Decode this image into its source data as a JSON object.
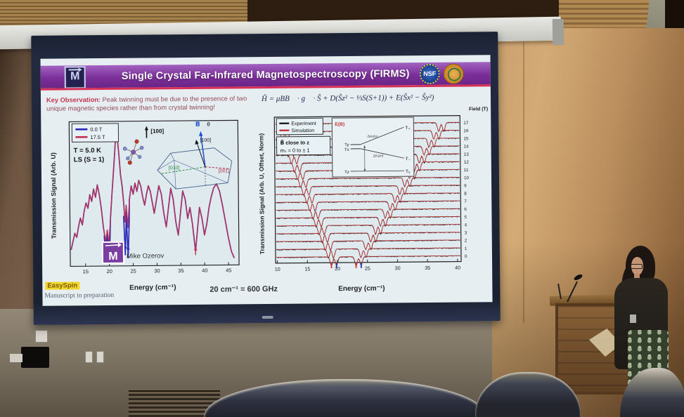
{
  "slide": {
    "title": "Single Crystal Far-Infrared Magnetospectroscopy (FIRMS)",
    "key_observation_label": "Key Observation:",
    "key_observation_text": " Peak twinning must be due to the presence of two unique magnetic species rather than from crystal twinning!",
    "equation": "Ĥ = μBB⃗ · g⃗ · Ŝ + D(Ŝz² − ⅓S(S+1)) + E(Ŝx² − Ŝy²)",
    "conversion": "20 cm⁻¹ = 600 GHz",
    "easyspin": "EasySpin",
    "manuscript": "Manuscript in preparation",
    "logos": {
      "maglab_m": "M",
      "nsf": "NSF"
    }
  },
  "chart_data": [
    {
      "type": "line",
      "title": "",
      "xlabel": "Energy (cm⁻¹)",
      "ylabel": "Transmission Signal (Arb. U)",
      "xlim": [
        11.8,
        47.2
      ],
      "xticks": [
        15,
        20,
        25,
        30,
        35,
        40,
        45
      ],
      "grid": false,
      "legend_position": "top-left",
      "series": [
        {
          "name": "0.0 T",
          "color": "#2a2ab8",
          "extra_dips": [
            {
              "x": 19.25,
              "v": 0.02,
              "top": 0.2
            },
            {
              "x": 19.9,
              "v": 0.01,
              "top": 0.18
            },
            {
              "x": 23.35,
              "v": 0.06,
              "top": 0.34
            },
            {
              "x": 23.95,
              "v": 0.04,
              "top": 0.3
            }
          ]
        },
        {
          "name": "17.5 T",
          "color": "#c03050"
        }
      ],
      "points": [
        [
          12.0,
          0.1
        ],
        [
          12.4,
          0.16
        ],
        [
          12.8,
          0.22
        ],
        [
          13.2,
          0.19
        ],
        [
          13.6,
          0.27
        ],
        [
          14.0,
          0.33
        ],
        [
          14.4,
          0.28
        ],
        [
          14.8,
          0.38
        ],
        [
          15.2,
          0.44
        ],
        [
          15.6,
          0.4
        ],
        [
          16.0,
          0.5
        ],
        [
          16.4,
          0.45
        ],
        [
          16.8,
          0.54
        ],
        [
          17.2,
          0.48
        ],
        [
          17.6,
          0.57
        ],
        [
          18.0,
          0.5
        ],
        [
          18.4,
          0.4
        ],
        [
          18.8,
          0.26
        ],
        [
          19.25,
          0.16
        ],
        [
          19.6,
          0.24
        ],
        [
          19.9,
          0.14
        ],
        [
          20.3,
          0.32
        ],
        [
          20.7,
          0.52
        ],
        [
          21.0,
          0.66
        ],
        [
          21.3,
          0.8
        ],
        [
          21.6,
          0.96
        ],
        [
          21.9,
          0.9
        ],
        [
          22.2,
          0.78
        ],
        [
          22.5,
          0.64
        ],
        [
          22.8,
          0.56
        ],
        [
          23.1,
          0.44
        ],
        [
          23.35,
          0.3
        ],
        [
          23.6,
          0.42
        ],
        [
          23.95,
          0.26
        ],
        [
          24.3,
          0.46
        ],
        [
          24.7,
          0.56
        ],
        [
          25.1,
          0.5
        ],
        [
          25.5,
          0.58
        ],
        [
          25.9,
          0.52
        ],
        [
          26.3,
          0.6
        ],
        [
          26.7,
          0.56
        ],
        [
          27.1,
          0.48
        ],
        [
          27.5,
          0.42
        ],
        [
          27.9,
          0.5
        ],
        [
          28.3,
          0.56
        ],
        [
          28.7,
          0.52
        ],
        [
          29.1,
          0.44
        ],
        [
          29.5,
          0.36
        ],
        [
          30.0,
          0.46
        ],
        [
          30.5,
          0.56
        ],
        [
          31.0,
          0.5
        ],
        [
          31.5,
          0.36
        ],
        [
          32.0,
          0.26
        ],
        [
          32.5,
          0.4
        ],
        [
          33.0,
          0.54
        ],
        [
          33.5,
          0.46
        ],
        [
          34.0,
          0.3
        ],
        [
          34.5,
          0.2
        ],
        [
          35.0,
          0.36
        ],
        [
          35.5,
          0.52
        ],
        [
          36.0,
          0.46
        ],
        [
          36.5,
          0.32
        ],
        [
          37.0,
          0.4
        ],
        [
          37.5,
          0.28
        ],
        [
          38.1,
          0.08
        ],
        [
          38.6,
          0.26
        ],
        [
          39.0,
          0.4
        ],
        [
          39.5,
          0.32
        ],
        [
          40.0,
          0.2
        ],
        [
          40.5,
          0.28
        ],
        [
          41.0,
          0.4
        ],
        [
          41.5,
          0.48
        ],
        [
          42.0,
          0.54
        ],
        [
          42.6,
          0.57
        ],
        [
          43.2,
          0.52
        ],
        [
          43.8,
          0.42
        ],
        [
          44.4,
          0.3
        ],
        [
          45.0,
          0.18
        ],
        [
          45.6,
          0.08
        ],
        [
          46.2,
          0.03
        ]
      ],
      "markers": [
        {
          "x": 19.25,
          "v": 0.1,
          "color": "#2a2ab8"
        },
        {
          "x": 19.9,
          "v": 0.09,
          "color": "#2a2ab8"
        },
        {
          "x": 23.35,
          "v": 0.14,
          "color": "#2a2ab8"
        },
        {
          "x": 23.95,
          "v": 0.13,
          "color": "#2a2ab8"
        },
        {
          "x": 38.1,
          "v": 0.12,
          "color": "#c03050"
        }
      ],
      "annotations": {
        "temp": "T = 5.0 K",
        "spin": "LS (S = 1)",
        "axis_arrow": "[100]",
        "b_vec": "B⃗",
        "theta": "θ",
        "b_axis": "[100]",
        "a010": "[010]",
        "a001": "[001]",
        "credit": "Mike Ozerov",
        "logo_m": "M"
      }
    },
    {
      "type": "line",
      "variant": "waterfall",
      "title": "",
      "xlabel": "Energy (cm⁻¹)",
      "ylabel": "Transmission Signal (Arb. U, Offset, Norm)",
      "right_axis_label": "Field (T)",
      "xlim": [
        9.7,
        40.6
      ],
      "xticks": [
        10,
        15,
        20,
        25,
        30,
        35,
        40
      ],
      "fields": [
        17,
        16,
        15,
        14,
        13,
        12,
        11,
        10,
        9,
        8,
        7,
        6,
        5,
        4,
        3,
        2,
        1,
        0
      ],
      "series": [
        {
          "name": "Experiment",
          "color": "#1b1b1b"
        },
        {
          "name": "Simulation",
          "color": "#c23535"
        }
      ],
      "note_lines": [
        "B⃗ close to z",
        "mₛ = 0 to ± 1"
      ],
      "dip_model": {
        "left0": 19.0,
        "left_slope": -0.5,
        "right0": 23.1,
        "right_slope": 0.82,
        "twin": 0.85,
        "sigma": 0.2,
        "depth": 12.8
      },
      "axis_marks": [
        {
          "x": 19.0,
          "color": "#cc3333"
        },
        {
          "x": 19.85,
          "color": "#2233bb"
        },
        {
          "x": 23.1,
          "color": "#cc3333"
        },
        {
          "x": 23.95,
          "color": "#2233bb"
        }
      ],
      "inset": {
        "corner": "E(B)",
        "t_plus": "T₊",
        "t_minus": "T₋",
        "t_zero": "T₀",
        "t_x": "Tx",
        "t_y": "Ty",
        "t_z": "Tz",
        "d_easy": "Δeasy",
        "d_hard": "Δhard"
      }
    }
  ]
}
